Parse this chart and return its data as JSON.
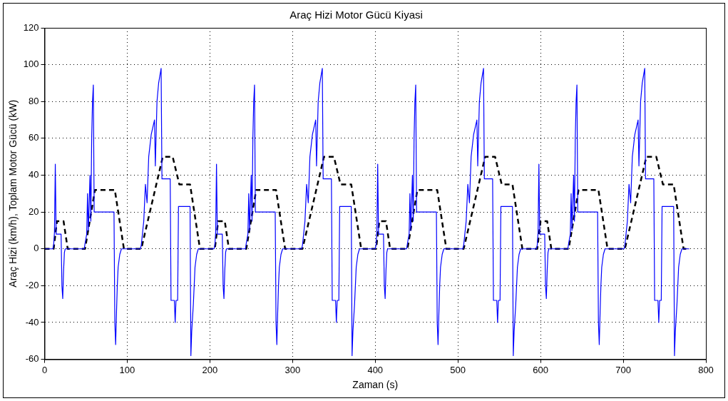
{
  "chart_data": {
    "type": "line",
    "title": "Araç Hizi Motor Gücü Kiyasi",
    "xlabel": "Zaman (s)",
    "ylabel": "Araç Hizi (km/h), Toplam Motor Gücü (kW)",
    "xlim": [
      0,
      800
    ],
    "xticks": [
      0,
      100,
      200,
      300,
      400,
      500,
      600,
      700,
      800
    ],
    "ylim": [
      -60,
      120
    ],
    "yticks": [
      -60,
      -40,
      -20,
      0,
      20,
      40,
      60,
      80,
      100,
      120
    ],
    "grid": true,
    "legend": false,
    "marker": "none",
    "series": [
      {
        "color": "#0000ff",
        "line_style": "solid",
        "x": [
          0,
          10,
          11,
          12,
          13,
          14,
          20,
          21,
          22,
          23,
          24,
          25,
          48,
          49,
          51,
          52,
          53,
          55,
          56,
          57,
          58,
          59,
          60,
          84,
          85,
          86,
          87,
          88,
          89,
          91,
          93,
          116,
          117,
          120,
          122,
          124,
          126,
          129,
          133,
          134,
          136,
          138,
          141,
          142,
          152,
          153,
          157,
          158,
          159,
          161,
          162,
          176,
          177,
          178,
          180,
          182,
          184,
          186,
          195,
          205,
          206,
          207,
          208,
          209,
          215,
          216,
          217,
          218,
          219,
          220,
          243,
          244,
          246,
          247,
          248,
          250,
          251,
          252,
          253,
          254,
          255,
          279,
          280,
          281,
          282,
          283,
          284,
          286,
          288,
          311,
          312,
          315,
          317,
          319,
          321,
          324,
          328,
          329,
          331,
          333,
          336,
          337,
          347,
          348,
          352,
          353,
          354,
          356,
          357,
          371,
          372,
          373,
          375,
          377,
          379,
          381,
          390,
          400,
          401,
          402,
          403,
          404,
          410,
          411,
          412,
          413,
          414,
          415,
          438,
          439,
          441,
          442,
          443,
          445,
          446,
          447,
          448,
          449,
          450,
          474,
          475,
          476,
          477,
          478,
          479,
          481,
          483,
          506,
          507,
          510,
          512,
          514,
          516,
          519,
          523,
          524,
          526,
          528,
          531,
          532,
          542,
          543,
          547,
          548,
          549,
          551,
          552,
          566,
          567,
          568,
          570,
          572,
          574,
          576,
          585,
          595,
          596,
          597,
          598,
          599,
          605,
          606,
          607,
          608,
          609,
          610,
          633,
          634,
          636,
          637,
          638,
          640,
          641,
          642,
          643,
          644,
          645,
          669,
          670,
          671,
          672,
          673,
          674,
          676,
          678,
          701,
          702,
          705,
          707,
          709,
          711,
          714,
          718,
          719,
          721,
          723,
          726,
          727,
          737,
          738,
          742,
          743,
          744,
          746,
          747,
          761,
          762,
          763,
          765,
          767,
          769,
          771,
          780
        ],
        "values": [
          0,
          0,
          2,
          9,
          46,
          8,
          8,
          -20,
          -27,
          -12,
          -2,
          0,
          0,
          3,
          8,
          30,
          10,
          40,
          15,
          60,
          80,
          89,
          20,
          20,
          -40,
          -52,
          -35,
          -20,
          -10,
          -3,
          0,
          0,
          2,
          15,
          35,
          25,
          50,
          62,
          70,
          45,
          80,
          90,
          98,
          38,
          38,
          -28,
          -28,
          -40,
          -28,
          -28,
          23,
          23,
          -58,
          -45,
          -30,
          -10,
          -3,
          0,
          0,
          0,
          2,
          9,
          46,
          8,
          8,
          -20,
          -27,
          -12,
          -2,
          0,
          0,
          3,
          8,
          30,
          10,
          40,
          15,
          60,
          80,
          89,
          20,
          20,
          -40,
          -52,
          -35,
          -20,
          -10,
          -3,
          0,
          0,
          2,
          15,
          35,
          25,
          50,
          62,
          70,
          45,
          80,
          90,
          98,
          38,
          38,
          -28,
          -28,
          -40,
          -28,
          -28,
          23,
          23,
          -58,
          -45,
          -30,
          -10,
          -3,
          0,
          0,
          0,
          2,
          9,
          46,
          8,
          8,
          -20,
          -27,
          -12,
          -2,
          0,
          0,
          3,
          8,
          30,
          10,
          40,
          15,
          60,
          80,
          89,
          20,
          20,
          -40,
          -52,
          -35,
          -20,
          -10,
          -3,
          0,
          0,
          2,
          15,
          35,
          25,
          50,
          62,
          70,
          45,
          80,
          90,
          98,
          38,
          38,
          -28,
          -28,
          -40,
          -28,
          -28,
          23,
          23,
          -58,
          -45,
          -30,
          -10,
          -3,
          0,
          0,
          0,
          2,
          9,
          46,
          8,
          8,
          -20,
          -27,
          -12,
          -2,
          0,
          0,
          3,
          8,
          30,
          10,
          40,
          15,
          60,
          80,
          89,
          20,
          20,
          -40,
          -52,
          -35,
          -20,
          -10,
          -3,
          0,
          0,
          2,
          15,
          35,
          25,
          50,
          62,
          70,
          45,
          80,
          90,
          98,
          38,
          38,
          -28,
          -28,
          -40,
          -28,
          -28,
          23,
          23,
          -58,
          -45,
          -30,
          -10,
          -3,
          0,
          0
        ]
      },
      {
        "color": "#000000",
        "line_style": "dashed",
        "x": [
          0,
          11,
          15,
          23,
          28,
          49,
          61,
          85,
          96,
          117,
          143,
          155,
          163,
          176,
          188,
          195,
          206,
          210,
          218,
          223,
          244,
          256,
          280,
          291,
          312,
          338,
          350,
          358,
          371,
          383,
          390,
          401,
          405,
          413,
          418,
          439,
          451,
          475,
          486,
          507,
          533,
          545,
          553,
          566,
          578,
          585,
          596,
          600,
          608,
          613,
          634,
          646,
          670,
          681,
          702,
          728,
          740,
          748,
          761,
          773,
          780
        ],
        "values": [
          0,
          0,
          15,
          15,
          0,
          0,
          32,
          32,
          0,
          0,
          50,
          50,
          35,
          35,
          0,
          0,
          0,
          15,
          15,
          0,
          0,
          32,
          32,
          0,
          0,
          50,
          50,
          35,
          35,
          0,
          0,
          0,
          15,
          15,
          0,
          0,
          32,
          32,
          0,
          0,
          50,
          50,
          35,
          35,
          0,
          0,
          0,
          15,
          15,
          0,
          0,
          32,
          32,
          0,
          0,
          50,
          50,
          35,
          35,
          0,
          0
        ]
      }
    ]
  }
}
